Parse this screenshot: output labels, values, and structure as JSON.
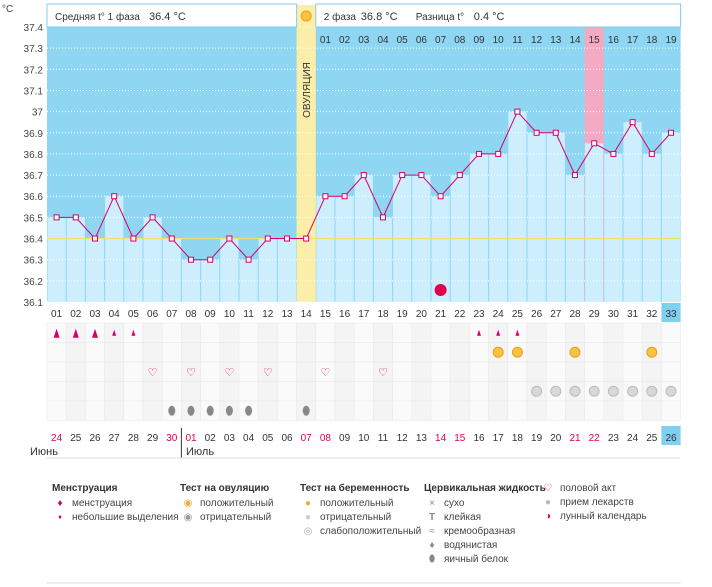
{
  "header": {
    "phase1_label": "Средняя t° 1 фаза",
    "phase1_value": "36.4 °C",
    "phase2_label": "2 фаза",
    "phase2_value": "36.8 °C",
    "diff_label": "Разница t°",
    "diff_value": "0.4 °C",
    "unit": "°C"
  },
  "ovulation_label": "ОВУЛЯЦИЯ",
  "chart_data": {
    "type": "line",
    "title": "",
    "xlabel": "",
    "ylabel": "°C",
    "ylim": [
      36.1,
      37.4
    ],
    "yticks": [
      "36.1",
      "36.2",
      "36.3",
      "36.4",
      "36.5",
      "36.6",
      "36.7",
      "36.8",
      "36.9",
      "37",
      "37.1",
      "37.2",
      "37.3",
      "37.4"
    ],
    "x": [
      "01",
      "02",
      "03",
      "04",
      "05",
      "06",
      "07",
      "08",
      "09",
      "10",
      "11",
      "12",
      "13",
      "14",
      "15",
      "16",
      "17",
      "18",
      "19",
      "20",
      "21",
      "22",
      "23",
      "24",
      "25",
      "26",
      "27",
      "28",
      "29",
      "30",
      "31",
      "32",
      "33"
    ],
    "series": [
      {
        "values": [
          36.5,
          36.5,
          36.4,
          36.6,
          36.4,
          36.5,
          36.4,
          36.3,
          36.3,
          36.4,
          36.3,
          36.4,
          36.4,
          36.4,
          36.6,
          36.6,
          36.7,
          36.5,
          36.7,
          36.7,
          36.6,
          36.7,
          36.8,
          36.8,
          37.0,
          36.9,
          36.9,
          36.7,
          36.85,
          36.8,
          36.95,
          36.8,
          36.9
        ]
      }
    ],
    "coverline": 36.4,
    "ovulation_day": 14,
    "phase2_days": [
      "01",
      "02",
      "03",
      "04",
      "05",
      "06",
      "07",
      "08",
      "09",
      "10",
      "11",
      "12",
      "13",
      "14",
      "15",
      "16",
      "17",
      "18",
      "19"
    ],
    "highlighted_phase2_day": "15",
    "dates": [
      "24",
      "25",
      "26",
      "27",
      "28",
      "29",
      "30",
      "01",
      "02",
      "03",
      "04",
      "05",
      "06",
      "07",
      "08",
      "09",
      "10",
      "11",
      "12",
      "13",
      "14",
      "15",
      "16",
      "17",
      "18",
      "19",
      "20",
      "21",
      "22",
      "23",
      "24",
      "25",
      "26"
    ],
    "red_dates": [
      "24",
      "30",
      "01",
      "07",
      "08",
      "14",
      "15",
      "21",
      "22"
    ],
    "months": [
      "Июнь",
      "Июль"
    ],
    "moon_day": 21,
    "rows": {
      "menstruation_heavy": [
        1,
        2,
        3
      ],
      "menstruation_light": [
        4,
        5,
        23,
        24,
        25
      ],
      "ovulation_positive": [
        24,
        25,
        28,
        32
      ],
      "intercourse": [
        6,
        8,
        10,
        12,
        15,
        18
      ],
      "medication": [
        26,
        27,
        28,
        29,
        30,
        31,
        32,
        33
      ],
      "egg_white": [
        7,
        8,
        9,
        10,
        11,
        14
      ],
      "pregnancy_test": [
        32
      ]
    }
  },
  "legend": {
    "menstruation": {
      "title": "Менструация",
      "items": [
        "менструация",
        "небольшие выделения"
      ]
    },
    "ovulation_test": {
      "title": "Тест на овуляцию",
      "items": [
        "положительный",
        "отрицательный"
      ]
    },
    "pregnancy_test": {
      "title": "Тест на беременность",
      "items": [
        "положительный",
        "отрицательный",
        "слабоположительный"
      ]
    },
    "cervical": {
      "title": "Цервикальная жидкость",
      "items": [
        "сухо",
        "клейкая",
        "кремообразная",
        "водянистая",
        "яичный белок"
      ]
    },
    "other": {
      "items": [
        "половой акт",
        "прием лекарств",
        "лунный календарь"
      ]
    }
  },
  "colors": {
    "sky": "#8fd6f3",
    "fill": "#cdeefc",
    "line": "#d6006a",
    "ovulation": "#fbeea8",
    "highlight": "#f5aac4",
    "red_date": "#e0004d"
  }
}
